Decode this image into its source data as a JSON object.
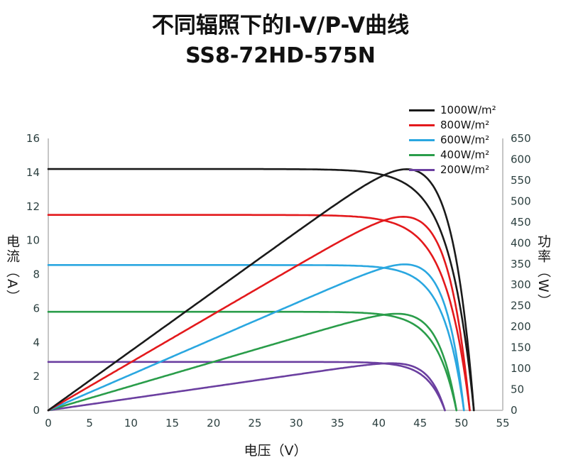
{
  "title": {
    "line1": "不同辐照下的I-V/P-V曲线",
    "line2": "SS8-72HD-575N"
  },
  "chart_data": {
    "type": "line",
    "title": "不同辐照下的I-V/P-V曲线 SS8-72HD-575N",
    "description": "I-V and P-V curves of module SS8-72HD-575N under five irradiance levels; each color has a flat I-V curve (left axis, A) and a rising-peaking P-V curve (right axis, W).",
    "x_axis": {
      "label": "电压（V）",
      "min": 0,
      "max": 55,
      "ticks": [
        0,
        5,
        10,
        15,
        20,
        25,
        30,
        35,
        40,
        45,
        50,
        55
      ]
    },
    "y_left": {
      "label": "电流（A）",
      "min": 0,
      "max": 16,
      "ticks": [
        0,
        2,
        4,
        6,
        8,
        10,
        12,
        14,
        16
      ]
    },
    "y_right": {
      "label": "功率（W）",
      "min": 0,
      "max": 650,
      "ticks": [
        0,
        50,
        100,
        150,
        200,
        250,
        300,
        350,
        400,
        450,
        500,
        550,
        600,
        650
      ]
    },
    "legend_position": "top-right",
    "series": [
      {
        "label": "1000W/m²",
        "color": "#1a1a1a",
        "isc": 14.2,
        "voc": 51.5,
        "vmp": 42.6,
        "imp": 13.5,
        "pmax": 575,
        "curves": [
          "I-V",
          "P-V"
        ]
      },
      {
        "label": "800W/m²",
        "color": "#e3191c",
        "isc": 11.5,
        "voc": 51.0,
        "vmp": 42.3,
        "imp": 10.92,
        "pmax": 462,
        "curves": [
          "I-V",
          "P-V"
        ]
      },
      {
        "label": "600W/m²",
        "color": "#2aa7e0",
        "isc": 8.55,
        "voc": 50.3,
        "vmp": 42.0,
        "imp": 8.26,
        "pmax": 347,
        "curves": [
          "I-V",
          "P-V"
        ]
      },
      {
        "label": "400W/m²",
        "color": "#2a9d4a",
        "isc": 5.8,
        "voc": 49.4,
        "vmp": 41.3,
        "imp": 5.57,
        "pmax": 230,
        "curves": [
          "I-V",
          "P-V"
        ]
      },
      {
        "label": "200W/m²",
        "color": "#6b3fa0",
        "isc": 2.85,
        "voc": 48.0,
        "vmp": 40.8,
        "imp": 2.75,
        "pmax": 112,
        "curves": [
          "I-V",
          "P-V"
        ]
      }
    ],
    "colors": {
      "axis_line": "#c6c6c6",
      "tick_text": "#2b3f3f",
      "axis_label_text": "#1a1a1a"
    },
    "grid": false
  }
}
